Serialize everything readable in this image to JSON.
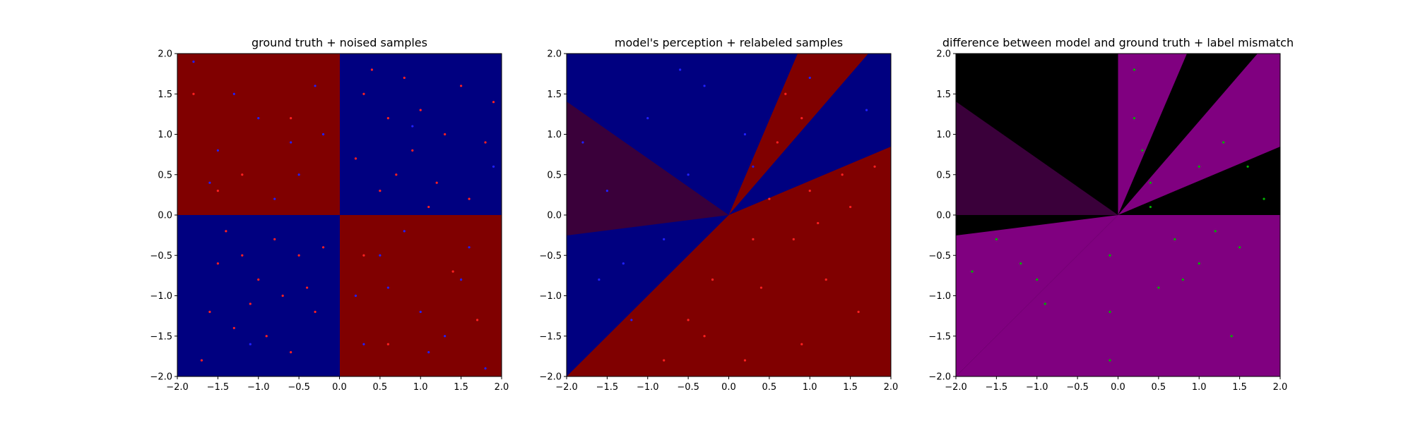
{
  "colors": {
    "red": "#800000",
    "blue": "#000080",
    "dark_purple": "#3a003a",
    "purple": "#800080",
    "black": "#000000",
    "point_red": "#ff2020",
    "point_blue": "#2020ff",
    "point_green": "#00b000"
  },
  "chart_data": [
    {
      "type": "scatter",
      "title": "ground truth + noised samples",
      "xlabel": "",
      "ylabel": "",
      "xlim": [
        -2.0,
        2.0
      ],
      "ylim": [
        -2.0,
        2.0
      ],
      "xticks": [
        "−2.0",
        "−1.5",
        "−1.0",
        "−0.5",
        "0.0",
        "0.5",
        "1.0",
        "1.5",
        "2.0"
      ],
      "yticks": [
        "−2.0",
        "−1.5",
        "−1.0",
        "−0.5",
        "0.0",
        "0.5",
        "1.0",
        "1.5",
        "2.0"
      ],
      "grid": false,
      "background": "quadrant classes: x*y > 0 red, x*y < 0 blue",
      "series": [
        {
          "color": "red",
          "points": [
            [
              0.3,
              1.5
            ],
            [
              0.6,
              1.2
            ],
            [
              0.9,
              0.8
            ],
            [
              1.2,
              0.4
            ],
            [
              0.5,
              0.3
            ],
            [
              1.5,
              1.6
            ],
            [
              1.8,
              0.9
            ],
            [
              0.2,
              0.7
            ],
            [
              1.0,
              1.3
            ],
            [
              1.3,
              1.0
            ],
            [
              0.7,
              0.5
            ],
            [
              1.6,
              0.2
            ],
            [
              0.4,
              1.8
            ],
            [
              1.1,
              0.1
            ],
            [
              1.9,
              1.4
            ],
            [
              0.8,
              1.7
            ],
            [
              -0.5,
              -0.5
            ],
            [
              -1.0,
              -0.8
            ],
            [
              -1.3,
              -1.4
            ],
            [
              -0.3,
              -1.2
            ],
            [
              -0.8,
              -0.3
            ],
            [
              -1.5,
              -0.6
            ],
            [
              -0.6,
              -1.7
            ],
            [
              -1.1,
              -1.1
            ],
            [
              -0.2,
              -0.4
            ],
            [
              -1.7,
              -1.8
            ],
            [
              -0.9,
              -1.5
            ],
            [
              -1.4,
              -0.2
            ],
            [
              -0.4,
              -0.9
            ],
            [
              -1.2,
              -0.5
            ],
            [
              -0.7,
              -1.0
            ],
            [
              -1.6,
              -1.2
            ],
            [
              -1.8,
              1.5
            ],
            [
              -1.2,
              0.5
            ],
            [
              -0.6,
              1.2
            ],
            [
              -1.5,
              0.3
            ],
            [
              0.6,
              -1.6
            ],
            [
              1.4,
              -0.7
            ],
            [
              0.3,
              -0.5
            ],
            [
              1.7,
              -1.3
            ]
          ]
        },
        {
          "color": "blue",
          "points": [
            [
              -0.5,
              0.5
            ],
            [
              -1.0,
              1.2
            ],
            [
              -1.5,
              0.8
            ],
            [
              -0.3,
              1.6
            ],
            [
              -0.8,
              0.2
            ],
            [
              -1.8,
              1.9
            ],
            [
              -0.2,
              1.0
            ],
            [
              -1.3,
              1.5
            ],
            [
              -0.6,
              0.9
            ],
            [
              -1.6,
              0.4
            ],
            [
              0.5,
              -0.5
            ],
            [
              1.0,
              -1.2
            ],
            [
              1.5,
              -0.8
            ],
            [
              0.3,
              -1.6
            ],
            [
              0.8,
              -0.2
            ],
            [
              1.8,
              -1.9
            ],
            [
              0.2,
              -1.0
            ],
            [
              1.3,
              -1.5
            ],
            [
              0.6,
              -0.9
            ],
            [
              1.6,
              -0.4
            ],
            [
              1.1,
              -1.7
            ],
            [
              0.9,
              1.1
            ],
            [
              -1.1,
              -1.6
            ],
            [
              1.9,
              0.6
            ]
          ]
        }
      ]
    },
    {
      "type": "scatter",
      "title": "model's perception + relabeled samples",
      "xlabel": "",
      "ylabel": "",
      "xlim": [
        -2.0,
        2.0
      ],
      "ylim": [
        -2.0,
        2.0
      ],
      "xticks": [
        "−2.0",
        "−1.5",
        "−1.0",
        "−0.5",
        "0.0",
        "0.5",
        "1.0",
        "1.5",
        "2.0"
      ],
      "yticks": [
        "−2.0",
        "−1.5",
        "−1.0",
        "−0.5",
        "0.0",
        "0.5",
        "1.0",
        "1.5",
        "2.0"
      ],
      "grid": false,
      "background": "angular sectors from origin: red and blue wedges with a dark purple wedge on the left",
      "series": [
        {
          "color": "red",
          "points": [
            [
              0.5,
              0.2
            ],
            [
              1.0,
              0.3
            ],
            [
              1.5,
              0.1
            ],
            [
              0.8,
              -0.3
            ],
            [
              1.2,
              -0.8
            ],
            [
              0.4,
              -0.9
            ],
            [
              -0.3,
              -1.5
            ],
            [
              0.2,
              -1.8
            ],
            [
              1.6,
              -1.2
            ],
            [
              0.9,
              -1.6
            ],
            [
              -0.8,
              -1.8
            ],
            [
              1.8,
              0.6
            ],
            [
              0.7,
              1.5
            ],
            [
              0.9,
              1.2
            ],
            [
              0.6,
              0.9
            ],
            [
              1.1,
              -0.1
            ],
            [
              0.3,
              -0.3
            ],
            [
              -0.2,
              -0.8
            ],
            [
              1.4,
              0.5
            ],
            [
              -0.5,
              -1.3
            ]
          ]
        },
        {
          "color": "blue",
          "points": [
            [
              -0.5,
              0.5
            ],
            [
              -1.0,
              1.2
            ],
            [
              -0.3,
              1.6
            ],
            [
              0.2,
              1.0
            ],
            [
              -1.5,
              0.3
            ],
            [
              -0.8,
              -0.3
            ],
            [
              -1.6,
              -0.8
            ],
            [
              -1.2,
              -1.3
            ],
            [
              0.3,
              0.6
            ],
            [
              1.0,
              1.7
            ],
            [
              1.7,
              1.3
            ],
            [
              -0.6,
              1.8
            ],
            [
              -1.8,
              0.9
            ],
            [
              -1.3,
              -0.6
            ]
          ]
        }
      ]
    },
    {
      "type": "scatter",
      "title": "difference between model and ground truth + label mismatch",
      "xlabel": "",
      "ylabel": "",
      "xlim": [
        -2.0,
        2.0
      ],
      "ylim": [
        -2.0,
        2.0
      ],
      "xticks": [
        "−2.0",
        "−1.5",
        "−1.0",
        "−0.5",
        "0.0",
        "0.5",
        "1.0",
        "1.5",
        "2.0"
      ],
      "yticks": [
        "−2.0",
        "−1.5",
        "−1.0",
        "−0.5",
        "0.0",
        "0.5",
        "1.0",
        "1.5",
        "2.0"
      ],
      "grid": false,
      "background": "black where model agrees with ground truth, purple where it differs, dark purple for uncertain wedge",
      "series": [
        {
          "color": "green",
          "points": [
            [
              0.2,
              1.2
            ],
            [
              0.3,
              0.8
            ],
            [
              0.4,
              0.4
            ],
            [
              1.0,
              0.6
            ],
            [
              1.3,
              0.9
            ],
            [
              1.6,
              0.6
            ],
            [
              0.7,
              -0.3
            ],
            [
              1.0,
              -0.6
            ],
            [
              0.5,
              -0.9
            ],
            [
              1.2,
              -0.2
            ],
            [
              1.5,
              -0.4
            ],
            [
              0.8,
              -0.8
            ],
            [
              -1.2,
              -0.6
            ],
            [
              -1.0,
              -0.8
            ],
            [
              -1.5,
              -0.3
            ],
            [
              -1.8,
              -0.7
            ],
            [
              -0.1,
              -1.2
            ],
            [
              -0.1,
              -0.5
            ],
            [
              -0.1,
              -1.8
            ],
            [
              0.4,
              0.1
            ],
            [
              1.8,
              0.2
            ],
            [
              -0.9,
              -1.1
            ],
            [
              1.4,
              -1.5
            ],
            [
              0.2,
              1.8
            ]
          ]
        }
      ]
    }
  ]
}
